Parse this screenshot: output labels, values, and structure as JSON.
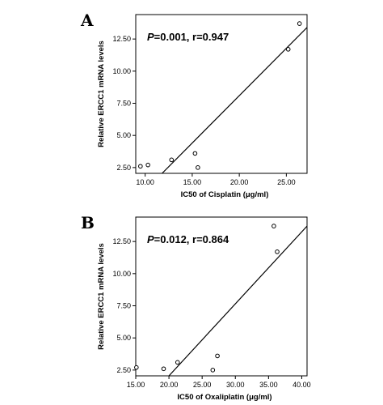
{
  "chart_data": [
    {
      "panel": "A",
      "type": "scatter",
      "xlabel": "IC50 of Cisplatin (μg/ml)",
      "ylabel": "Relative ERCC1 mRNA levels",
      "annotation_p_label": "P",
      "annotation_rest": "=0.001, r=0.947",
      "xlim": [
        9.0,
        27.2
      ],
      "ylim": [
        2.05,
        14.4
      ],
      "xticks": [
        10.0,
        15.0,
        20.0,
        25.0
      ],
      "xtick_labels": [
        "10.00",
        "15.00",
        "20.00",
        "25.00"
      ],
      "yticks": [
        2.5,
        5.0,
        7.5,
        10.0,
        12.5
      ],
      "ytick_labels": [
        "2.50",
        "5.00",
        "7.50",
        "10.00",
        "12.50"
      ],
      "points": [
        {
          "x": 9.5,
          "y": 2.6
        },
        {
          "x": 10.3,
          "y": 2.7
        },
        {
          "x": 12.8,
          "y": 3.1
        },
        {
          "x": 15.3,
          "y": 3.6
        },
        {
          "x": 15.6,
          "y": 2.5
        },
        {
          "x": 25.2,
          "y": 11.7
        },
        {
          "x": 26.4,
          "y": 13.7
        }
      ],
      "fit_line": [
        [
          11.8,
          2.05
        ],
        [
          27.2,
          13.4
        ]
      ]
    },
    {
      "panel": "B",
      "type": "scatter",
      "xlabel": "IC50 of Oxaliplatin (μg/ml)",
      "ylabel": "Relative ERCC1 mRNA levels",
      "annotation_p_label": "P",
      "annotation_rest": "=0.012, r=0.864",
      "xlim": [
        15.0,
        40.8
      ],
      "ylim": [
        2.05,
        14.4
      ],
      "xticks": [
        15.0,
        20.0,
        25.0,
        30.0,
        35.0,
        40.0
      ],
      "xtick_labels": [
        "15.00",
        "20.00",
        "25.00",
        "30.00",
        "35.00",
        "40.00"
      ],
      "yticks": [
        2.5,
        5.0,
        7.5,
        10.0,
        12.5
      ],
      "ytick_labels": [
        "2.50",
        "5.00",
        "7.50",
        "10.00",
        "12.50"
      ],
      "points": [
        {
          "x": 15.1,
          "y": 2.7
        },
        {
          "x": 19.2,
          "y": 2.6
        },
        {
          "x": 21.3,
          "y": 3.1
        },
        {
          "x": 26.6,
          "y": 2.5
        },
        {
          "x": 27.3,
          "y": 3.6
        },
        {
          "x": 35.8,
          "y": 13.7
        },
        {
          "x": 36.3,
          "y": 11.7
        }
      ],
      "fit_line": [
        [
          20.0,
          2.05
        ],
        [
          40.8,
          13.7
        ]
      ]
    }
  ]
}
